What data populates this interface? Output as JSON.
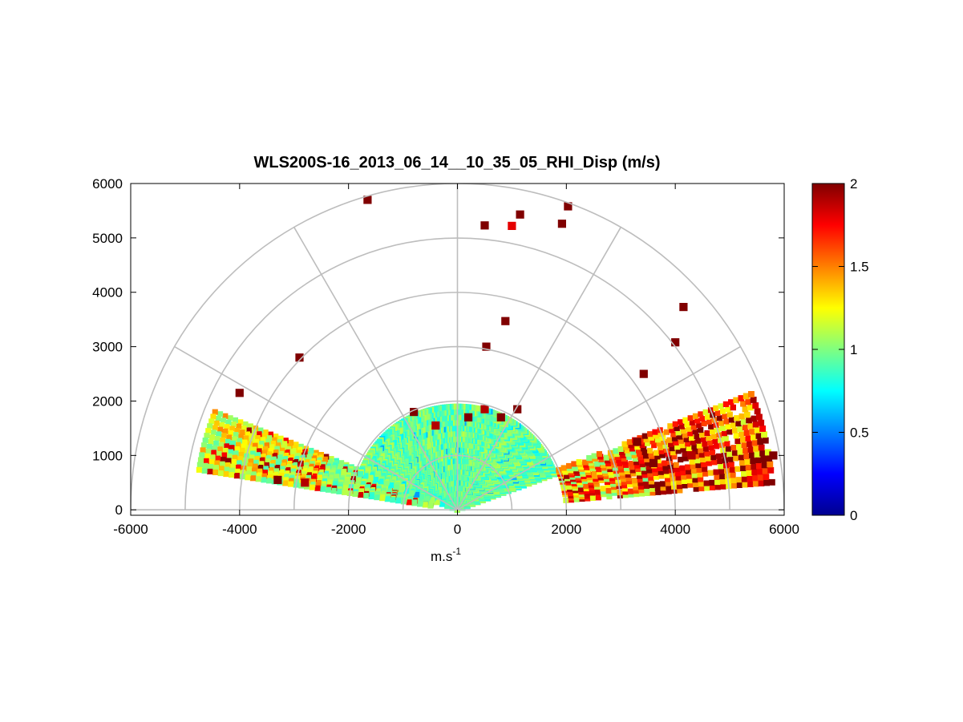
{
  "chart_data": {
    "type": "heatmap",
    "projection": "polar-rhi-half-disc",
    "title": "WLS200S-16_2013_06_14__10_35_05_RHI_Disp (m/s)",
    "xlabel": "m.s",
    "xlabel_superscript": "-1",
    "ylabel": "",
    "xlim": [
      -6000,
      6000
    ],
    "ylim": [
      -100,
      6000
    ],
    "xticks": [
      "-6000",
      "-4000",
      "-2000",
      "0",
      "2000",
      "4000",
      "6000"
    ],
    "yticks": [
      "0",
      "1000",
      "2000",
      "3000",
      "4000",
      "5000",
      "6000"
    ],
    "xtick_values": [
      -6000,
      -4000,
      -2000,
      0,
      2000,
      4000,
      6000
    ],
    "ytick_values": [
      0,
      1000,
      2000,
      3000,
      4000,
      5000,
      6000
    ],
    "range_rings_m": [
      1000,
      2000,
      3000,
      4000,
      5000,
      6000
    ],
    "spokes_deg": [
      0,
      30,
      60,
      90,
      120,
      150,
      180
    ],
    "grid": true,
    "colormap": "jet",
    "colorbar": {
      "range": [
        0,
        2
      ],
      "tick_values": [
        0,
        0.5,
        1,
        1.5,
        2
      ],
      "tick_labels": [
        "0",
        "0.5",
        "1",
        "1.5",
        "2"
      ],
      "position": "right"
    },
    "sectors": [
      {
        "description": "low-elevation scan, west",
        "azimuth_deg": [
          158,
          172
        ],
        "range_m": [
          500,
          4900
        ],
        "typical_value": 1.0
      },
      {
        "description": "low-elevation scan, near field",
        "azimuth_deg": [
          20,
          160
        ],
        "range_m": [
          0,
          2000
        ],
        "typical_value": 0.95
      },
      {
        "description": "low-elevation scan, east",
        "azimuth_deg": [
          5,
          22
        ],
        "range_m": [
          2000,
          5900
        ],
        "typical_value": 1.45
      }
    ],
    "notable_cells": [
      {
        "x": -1650,
        "y": 5700,
        "value": 2.0
      },
      {
        "x": 500,
        "y": 5230,
        "value": 2.0
      },
      {
        "x": 1150,
        "y": 5430,
        "value": 2.0
      },
      {
        "x": 1000,
        "y": 5220,
        "value": 1.8
      },
      {
        "x": 1920,
        "y": 5260,
        "value": 2.0
      },
      {
        "x": 2030,
        "y": 5580,
        "value": 2.0
      },
      {
        "x": 880,
        "y": 3470,
        "value": 2.0
      },
      {
        "x": 530,
        "y": 3000,
        "value": 2.0
      },
      {
        "x": -2900,
        "y": 2800,
        "value": 2.0
      },
      {
        "x": -4000,
        "y": 2150,
        "value": 2.0
      },
      {
        "x": 4150,
        "y": 3730,
        "value": 2.0
      },
      {
        "x": 4000,
        "y": 3080,
        "value": 2.0
      },
      {
        "x": 3420,
        "y": 2500,
        "value": 2.0
      },
      {
        "x": 200,
        "y": 1700,
        "value": 2.0
      },
      {
        "x": 500,
        "y": 1850,
        "value": 1.9
      },
      {
        "x": 800,
        "y": 1700,
        "value": 2.0
      },
      {
        "x": -800,
        "y": 1800,
        "value": 2.0
      },
      {
        "x": -400,
        "y": 1550,
        "value": 1.9
      },
      {
        "x": 1100,
        "y": 1850,
        "value": 2.0
      },
      {
        "x": -3300,
        "y": 550,
        "value": 2.0
      },
      {
        "x": -2800,
        "y": 500,
        "value": 1.9
      },
      {
        "x": 3600,
        "y": 860,
        "value": 2.0
      },
      {
        "x": 4300,
        "y": 1000,
        "value": 1.9
      },
      {
        "x": 3300,
        "y": 1250,
        "value": 2.0
      },
      {
        "x": 5800,
        "y": 1000,
        "value": 2.0
      }
    ]
  }
}
